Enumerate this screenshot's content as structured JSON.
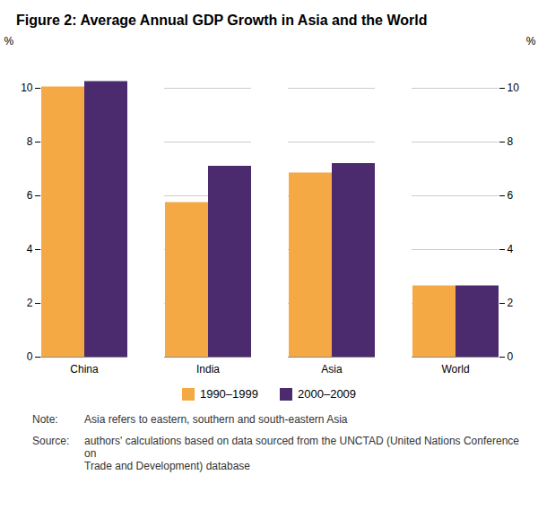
{
  "chart_data": {
    "type": "bar",
    "title": "Figure 2: Average Annual GDP Growth in Asia and the World",
    "categories": [
      "China",
      "India",
      "Asia",
      "World"
    ],
    "series": [
      {
        "name": "1990–1999",
        "color": "#F5A944",
        "values": [
          10.05,
          5.75,
          6.85,
          2.65
        ]
      },
      {
        "name": "2000–2009",
        "color": "#4B2B6E",
        "values": [
          10.25,
          7.1,
          7.2,
          2.65
        ]
      }
    ],
    "ylim": [
      0,
      11
    ],
    "yticks": [
      0,
      2,
      4,
      6,
      8,
      10
    ],
    "ylabel": "%",
    "y2lim": [
      0,
      11
    ],
    "y2ticks": [
      0,
      2,
      4,
      6,
      8,
      10
    ],
    "y2label": "%",
    "grid": true,
    "legend": "bottom",
    "annotations": [
      {
        "label": "Note:",
        "text": "Asia refers to eastern, southern and south-eastern Asia"
      },
      {
        "label": "Source:",
        "text": "authors' calculations based on data sourced from the UNCTAD (United Nations Conference on\nTrade and Development) database"
      }
    ]
  }
}
